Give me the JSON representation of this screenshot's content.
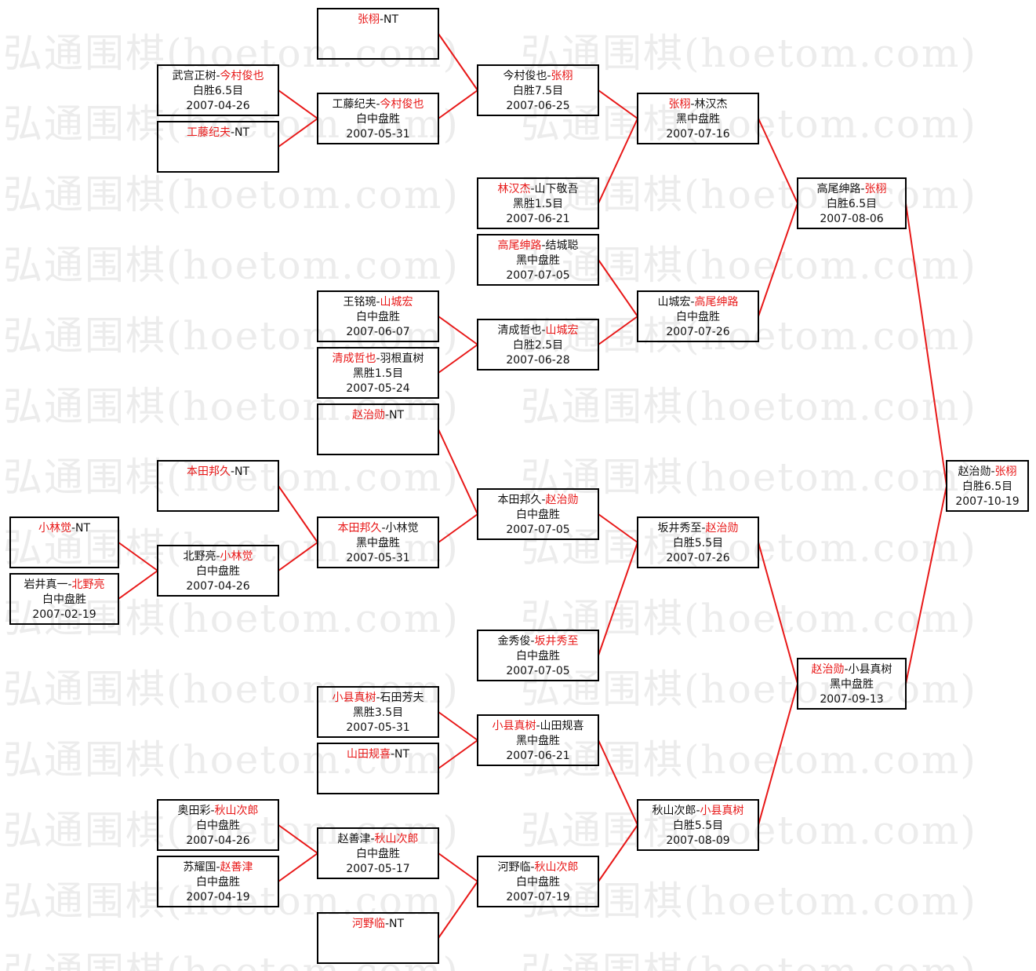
{
  "watermark": "弘通围棋(hoetom.com)",
  "colors": {
    "winner": "#e81818",
    "connector": "#e81818",
    "border": "#000000"
  },
  "matches": [
    {
      "p1": "小林觉",
      "p2": "NT",
      "winner": 1,
      "result": "",
      "date": ""
    },
    {
      "p1": "岩井真一",
      "p2": "北野亮",
      "winner": 2,
      "result": "白中盘胜",
      "date": "2007-02-19"
    },
    {
      "p1": "武宫正树",
      "p2": "今村俊也",
      "winner": 2,
      "result": "白胜6.5目",
      "date": "2007-04-26"
    },
    {
      "p1": "工藤纪夫",
      "p2": "NT",
      "winner": 1,
      "result": "",
      "date": ""
    },
    {
      "p1": "本田邦久",
      "p2": "NT",
      "winner": 1,
      "result": "",
      "date": ""
    },
    {
      "p1": "北野亮",
      "p2": "小林觉",
      "winner": 2,
      "result": "白中盘胜",
      "date": "2007-04-26"
    },
    {
      "p1": "奥田彩",
      "p2": "秋山次郎",
      "winner": 2,
      "result": "白中盘胜",
      "date": "2007-04-26"
    },
    {
      "p1": "苏耀国",
      "p2": "赵善津",
      "winner": 2,
      "result": "白中盘胜",
      "date": "2007-04-19"
    },
    {
      "p1": "张栩",
      "p2": "NT",
      "winner": 1,
      "result": "",
      "date": ""
    },
    {
      "p1": "工藤纪夫",
      "p2": "今村俊也",
      "winner": 2,
      "result": "白中盘胜",
      "date": "2007-05-31"
    },
    {
      "p1": "王铭琬",
      "p2": "山城宏",
      "winner": 2,
      "result": "白中盘胜",
      "date": "2007-06-07"
    },
    {
      "p1": "清成哲也",
      "p2": "羽根直树",
      "winner": 1,
      "result": "黑胜1.5目",
      "date": "2007-05-24"
    },
    {
      "p1": "赵治勋",
      "p2": "NT",
      "winner": 1,
      "result": "",
      "date": ""
    },
    {
      "p1": "本田邦久",
      "p2": "小林觉",
      "winner": 1,
      "result": "黑中盘胜",
      "date": "2007-05-31"
    },
    {
      "p1": "小县真树",
      "p2": "石田芳夫",
      "winner": 1,
      "result": "黑胜3.5目",
      "date": "2007-05-31"
    },
    {
      "p1": "山田规喜",
      "p2": "NT",
      "winner": 1,
      "result": "",
      "date": ""
    },
    {
      "p1": "赵善津",
      "p2": "秋山次郎",
      "winner": 2,
      "result": "白中盘胜",
      "date": "2007-05-17"
    },
    {
      "p1": "河野临",
      "p2": "NT",
      "winner": 1,
      "result": "",
      "date": ""
    },
    {
      "p1": "今村俊也",
      "p2": "张栩",
      "winner": 2,
      "result": "白胜7.5目",
      "date": "2007-06-25"
    },
    {
      "p1": "林汉杰",
      "p2": "山下敬吾",
      "winner": 1,
      "result": "黑胜1.5目",
      "date": "2007-06-21"
    },
    {
      "p1": "高尾绅路",
      "p2": "结城聪",
      "winner": 1,
      "result": "黑中盘胜",
      "date": "2007-07-05"
    },
    {
      "p1": "清成哲也",
      "p2": "山城宏",
      "winner": 2,
      "result": "白胜2.5目",
      "date": "2007-06-28"
    },
    {
      "p1": "本田邦久",
      "p2": "赵治勋",
      "winner": 2,
      "result": "白中盘胜",
      "date": "2007-07-05"
    },
    {
      "p1": "金秀俊",
      "p2": "坂井秀至",
      "winner": 2,
      "result": "白中盘胜",
      "date": "2007-07-05"
    },
    {
      "p1": "小县真树",
      "p2": "山田规喜",
      "winner": 1,
      "result": "黑中盘胜",
      "date": "2007-06-21"
    },
    {
      "p1": "河野临",
      "p2": "秋山次郎",
      "winner": 2,
      "result": "白中盘胜",
      "date": "2007-07-19"
    },
    {
      "p1": "张栩",
      "p2": "林汉杰",
      "winner": 1,
      "result": "黑中盘胜",
      "date": "2007-07-16"
    },
    {
      "p1": "山城宏",
      "p2": "高尾绅路",
      "winner": 2,
      "result": "白中盘胜",
      "date": "2007-07-26"
    },
    {
      "p1": "坂井秀至",
      "p2": "赵治勋",
      "winner": 2,
      "result": "白胜5.5目",
      "date": "2007-07-26"
    },
    {
      "p1": "秋山次郎",
      "p2": "小县真树",
      "winner": 2,
      "result": "白胜5.5目",
      "date": "2007-08-09"
    },
    {
      "p1": "高尾绅路",
      "p2": "张栩",
      "winner": 2,
      "result": "白胜6.5目",
      "date": "2007-08-06"
    },
    {
      "p1": "赵治勋",
      "p2": "小县真树",
      "winner": 1,
      "result": "黑中盘胜",
      "date": "2007-09-13"
    },
    {
      "p1": "赵治勋",
      "p2": "张栩",
      "winner": 2,
      "result": "白胜6.5目",
      "date": "2007-10-19"
    }
  ]
}
